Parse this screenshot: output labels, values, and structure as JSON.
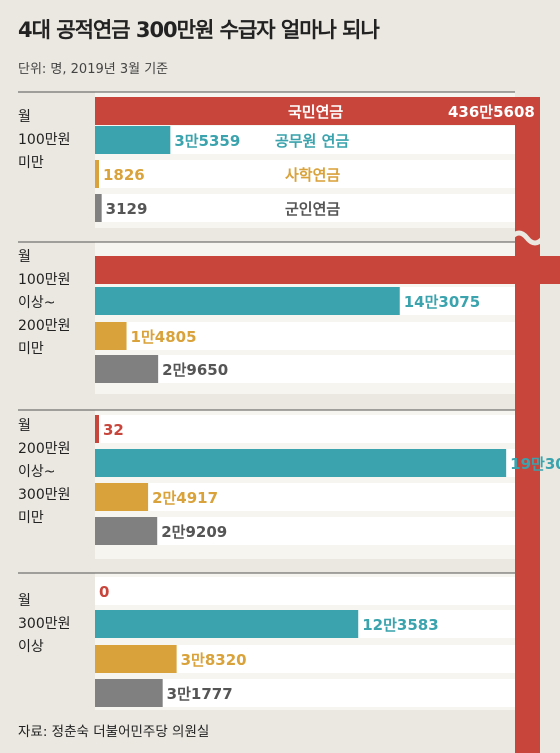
{
  "title": "4대 공적연금 300만원 수급자 얼마나 되나",
  "unit_note": "단위: 명, 2019년 3월 기준",
  "source": "자료: 정춘숙 더불어민주당 의원실",
  "colors": {
    "국민연금": "#c8453c",
    "공무원 연금": "#3aa3ad",
    "사학연금": "#d9a23a",
    "군인연금": "#808080",
    "background": "#ebe8e1",
    "bar_bg": "#ffffff"
  },
  "chart_data": {
    "type": "bar",
    "orientation": "horizontal",
    "categories": [
      [
        "월",
        "100만원",
        "미만"
      ],
      [
        "월",
        "100만원",
        "이상~",
        "200만원",
        "미만"
      ],
      [
        "월",
        "200만원",
        "이상~",
        "300만원",
        "미만"
      ],
      [
        "월",
        "300만원",
        "이상"
      ]
    ],
    "series": [
      {
        "name": "국민연금",
        "values": [
          4365608,
          224025,
          32,
          0
        ],
        "labels": [
          "436만5608",
          "22만4025",
          "32",
          "0"
        ]
      },
      {
        "name": "공무원 연금",
        "values": [
          35359,
          143075,
          193035,
          123583
        ],
        "labels": [
          "3만5359",
          "14만3075",
          "19만3035",
          "12만3583"
        ]
      },
      {
        "name": "사학연금",
        "values": [
          1826,
          14805,
          24917,
          38320
        ],
        "labels": [
          "1826",
          "1만4805",
          "2만4917",
          "3만8320"
        ]
      },
      {
        "name": "군인연금",
        "values": [
          3129,
          29650,
          29209,
          31777
        ],
        "labels": [
          "3129",
          "2만9650",
          "2만9209",
          "3만1777"
        ]
      }
    ],
    "axis_break": true,
    "grid": false,
    "legend": "inline"
  }
}
